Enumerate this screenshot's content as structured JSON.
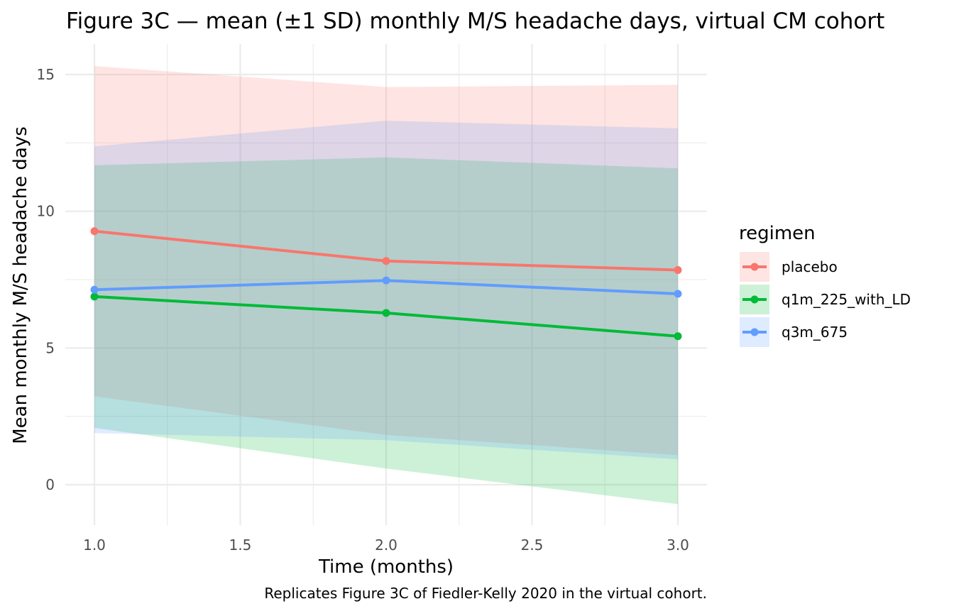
{
  "chart_data": {
    "type": "line",
    "title": "Figure 3C — mean (±1 SD) monthly M/S headache days, virtual CM cohort",
    "xlabel": "Time (months)",
    "ylabel": "Mean monthly M/S headache days",
    "caption": "Replicates Figure 3C of Fiedler-Kelly 2020 in the virtual cohort.",
    "xlim": [
      0.97,
      3.03
    ],
    "ylim": [
      -1.5,
      16.1
    ],
    "x_ticks": [
      1.0,
      1.5,
      2.0,
      2.5,
      3.0
    ],
    "x_tick_labels": [
      "1.0",
      "1.5",
      "2.0",
      "2.5",
      "3.0"
    ],
    "x_minor": [
      1.25,
      1.75,
      2.25,
      2.75
    ],
    "y_ticks": [
      0,
      5,
      10,
      15
    ],
    "y_tick_labels": [
      "0",
      "5",
      "10",
      "15"
    ],
    "y_minor": [
      2.5,
      7.5,
      12.5
    ],
    "grid": true,
    "legend": {
      "title": "regimen",
      "position": "right"
    },
    "x": [
      1,
      2,
      3
    ],
    "series": [
      {
        "name": "placebo",
        "color": "#F8766D",
        "fill": "#FFE5E2",
        "values": [
          9.27,
          8.18,
          7.85
        ],
        "sd_lower": [
          3.23,
          1.82,
          1.08
        ],
        "sd_upper": [
          15.31,
          14.54,
          14.62
        ]
      },
      {
        "name": "q1m_225_with_LD",
        "color": "#00BA38",
        "fill": "#DBF2E1",
        "values": [
          6.88,
          6.28,
          5.43
        ],
        "sd_lower": [
          2.08,
          0.59,
          -0.71
        ],
        "sd_upper": [
          11.68,
          11.97,
          11.57
        ]
      },
      {
        "name": "q3m_675",
        "color": "#619CFF",
        "fill": "#E4EEFF",
        "values": [
          7.13,
          7.47,
          6.98
        ],
        "sd_lower": [
          1.89,
          1.63,
          0.93
        ],
        "sd_upper": [
          12.37,
          13.31,
          13.03
        ]
      }
    ]
  }
}
